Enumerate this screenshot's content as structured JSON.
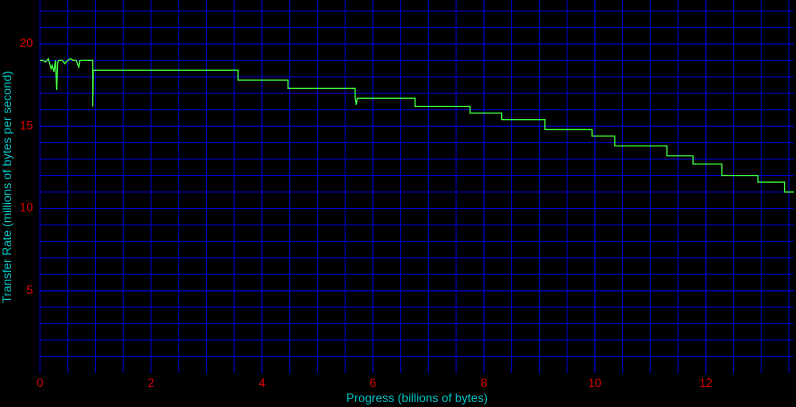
{
  "chart_data": {
    "type": "line",
    "x_label": "Progress (billions of bytes)",
    "y_label": "Transfer Rate (millions of bytes per second)",
    "xlim": [
      0,
      13.59
    ],
    "ylim": [
      0,
      22.67
    ],
    "xticks": [
      0,
      2,
      4,
      6,
      8,
      10,
      12
    ],
    "yticks": [
      5,
      10,
      15,
      20
    ],
    "xgrid": [
      0.5,
      1,
      1.5,
      2,
      2.5,
      3,
      3.5,
      4,
      4.5,
      5,
      5.5,
      6,
      6.5,
      7,
      7.5,
      8,
      8.5,
      9,
      9.5,
      10,
      10.5,
      11,
      11.5,
      12,
      12.5,
      13,
      13.5
    ],
    "ygrid": [
      1,
      2,
      3,
      4,
      5,
      6,
      7,
      8,
      9,
      10,
      11,
      12,
      13,
      14,
      15,
      16,
      17,
      18,
      19,
      20,
      21,
      22
    ],
    "grid_color": "#0000c8",
    "color": "#40ff40",
    "x": [
      0,
      0.05,
      0.1,
      0.15,
      0.2,
      0.22,
      0.25,
      0.28,
      0.3,
      0.32,
      0.34,
      0.4,
      0.45,
      0.5,
      0.55,
      0.6,
      0.65,
      0.7,
      0.72,
      0.75,
      0.8,
      0.9,
      0.95,
      0.95,
      0.96,
      0.97,
      3.57,
      3.57,
      4.47,
      4.47,
      5.68,
      5.68,
      5.7,
      5.72,
      6.76,
      6.76,
      7.75,
      7.75,
      8.32,
      8.32,
      9.1,
      9.1,
      9.95,
      9.95,
      10.36,
      10.36,
      11.3,
      11.3,
      11.77,
      11.77,
      12.29,
      12.29,
      12.94,
      12.94,
      13.42,
      13.42,
      13.59
    ],
    "values": [
      19.0,
      19.0,
      18.9,
      19.1,
      18.5,
      18.7,
      18.3,
      19.0,
      17.2,
      18.9,
      19.0,
      19.0,
      18.8,
      19.0,
      19.1,
      19.0,
      19.0,
      18.6,
      19.0,
      19.0,
      19.0,
      19.0,
      19.0,
      16.2,
      18.4,
      18.4,
      18.4,
      17.8,
      17.8,
      17.3,
      17.3,
      16.7,
      16.3,
      16.7,
      16.7,
      16.2,
      16.2,
      15.8,
      15.8,
      15.4,
      15.4,
      14.8,
      14.8,
      14.4,
      14.4,
      13.8,
      13.8,
      13.2,
      13.2,
      12.7,
      12.7,
      12.0,
      12.0,
      11.6,
      11.6,
      11.0,
      11.0
    ]
  }
}
